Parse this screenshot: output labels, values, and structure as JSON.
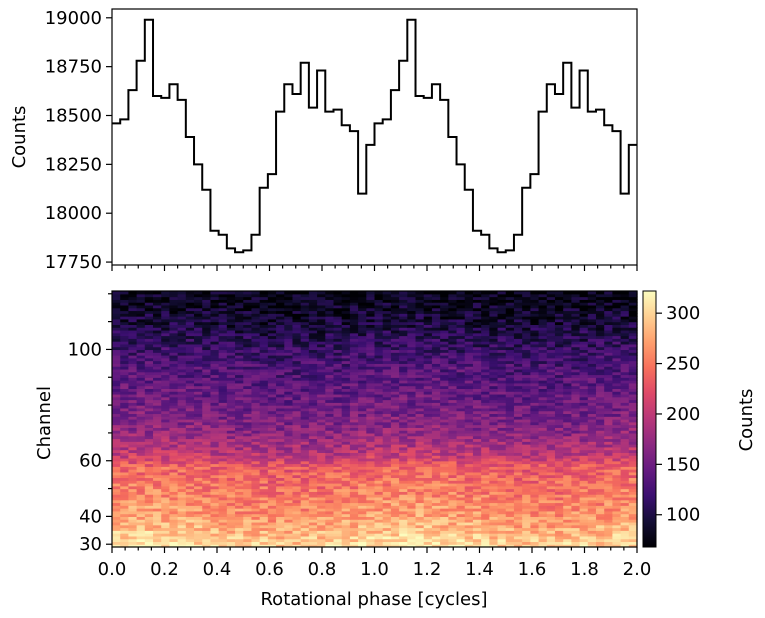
{
  "chart_data": [
    {
      "type": "line",
      "style": "step",
      "ylabel": "Counts",
      "xlim": [
        0.0,
        2.0
      ],
      "ylim": [
        17735,
        19045
      ],
      "yticks": [
        17750,
        18000,
        18250,
        18500,
        18750,
        19000
      ],
      "yticklabels": [
        "17750",
        "18000",
        "18250",
        "18500",
        "18750",
        "19000"
      ],
      "bin_width": 0.03125,
      "x_start": 0.0,
      "values": [
        18460,
        18480,
        18630,
        18780,
        18990,
        18600,
        18590,
        18660,
        18580,
        18390,
        18250,
        18120,
        17910,
        17890,
        17820,
        17800,
        17810,
        17890,
        18130,
        18200,
        18520,
        18660,
        18610,
        18770,
        18540,
        18730,
        18520,
        18530,
        18450,
        18420,
        18100,
        18350,
        18460,
        18480,
        18630,
        18780,
        18990,
        18600,
        18590,
        18660,
        18580,
        18390,
        18250,
        18120,
        17910,
        17890,
        17820,
        17800,
        17810,
        17890,
        18130,
        18200,
        18520,
        18660,
        18610,
        18770,
        18540,
        18730,
        18520,
        18530,
        18450,
        18420,
        18100,
        18350
      ],
      "color": "#000000"
    },
    {
      "type": "heatmap",
      "xlabel": "Rotational phase [cycles]",
      "ylabel": "Channel",
      "xlim": [
        0.0,
        2.0
      ],
      "ylim": [
        29,
        121
      ],
      "xticks": [
        0.0,
        0.2,
        0.4,
        0.6,
        0.8,
        1.0,
        1.2,
        1.4,
        1.6,
        1.8,
        2.0
      ],
      "xticklabels": [
        "0.0",
        "0.2",
        "0.4",
        "0.6",
        "0.8",
        "1.0",
        "1.2",
        "1.4",
        "1.6",
        "1.8",
        "2.0"
      ],
      "yticks": [
        30,
        40,
        60,
        100
      ],
      "yticklabels": [
        "30",
        "40",
        "60",
        "100"
      ],
      "n_phase_bins": 64,
      "colormap": "magma",
      "colorbar": {
        "label": "Counts",
        "range": [
          68,
          322
        ],
        "ticks": [
          100,
          150,
          200,
          250,
          300
        ],
        "ticklabels": [
          "100",
          "150",
          "200",
          "250",
          "300"
        ]
      },
      "channel_profile": [
        {
          "channel": 29,
          "counts": 305
        },
        {
          "channel": 35,
          "counts": 285
        },
        {
          "channel": 40,
          "counts": 270
        },
        {
          "channel": 50,
          "counts": 250
        },
        {
          "channel": 58,
          "counts": 235
        },
        {
          "channel": 62,
          "counts": 200
        },
        {
          "channel": 70,
          "counts": 170
        },
        {
          "channel": 80,
          "counts": 150
        },
        {
          "channel": 95,
          "counts": 130
        },
        {
          "channel": 105,
          "counts": 105
        },
        {
          "channel": 112,
          "counts": 90
        },
        {
          "channel": 121,
          "counts": 78
        }
      ]
    }
  ]
}
